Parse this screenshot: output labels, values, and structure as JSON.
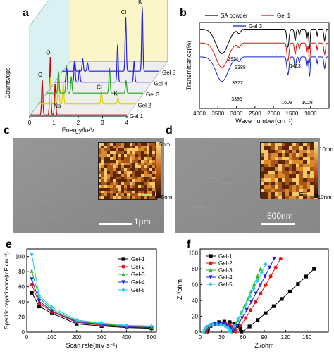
{
  "panel_labels": {
    "a": "a",
    "b": "b",
    "c": "c",
    "d": "d",
    "e": "e",
    "f": "f"
  },
  "chart_data": [
    {
      "id": "a",
      "type": "line",
      "xlabel": "Energy/keV",
      "ylabel": "Counts/cps",
      "x_ticks": [
        "0",
        "1",
        "2",
        "3",
        "4"
      ],
      "xlim": [
        0,
        4
      ],
      "series": [
        {
          "name": "Gel 1",
          "color": "#cc0000",
          "peaks": [
            {
              "x": 0.52,
              "h": 0.34
            },
            {
              "x": 0.85,
              "h": 0.55
            },
            {
              "x": 1.05,
              "h": 0.3
            }
          ]
        },
        {
          "name": "Gel 2",
          "color": "#e0d000",
          "peaks": [
            {
              "x": 0.52,
              "h": 0.26
            },
            {
              "x": 0.85,
              "h": 0.32
            },
            {
              "x": 1.05,
              "h": 0.2
            },
            {
              "x": 2.62,
              "h": 0.12
            },
            {
              "x": 3.3,
              "h": 0.06
            }
          ]
        },
        {
          "name": "Gel 3",
          "color": "#22aa22",
          "peaks": [
            {
              "x": 0.52,
              "h": 0.2
            },
            {
              "x": 0.85,
              "h": 0.26
            },
            {
              "x": 1.05,
              "h": 0.16
            },
            {
              "x": 2.62,
              "h": 0.24
            },
            {
              "x": 3.3,
              "h": 0.12
            }
          ]
        },
        {
          "name": "Gel 4",
          "color": "#2020dd",
          "peaks": [
            {
              "x": 0.52,
              "h": 0.14
            },
            {
              "x": 0.85,
              "h": 0.18
            },
            {
              "x": 1.05,
              "h": 0.12
            },
            {
              "x": 2.62,
              "h": 0.36
            },
            {
              "x": 3.3,
              "h": 0.2
            }
          ]
        },
        {
          "name": "Gel 5",
          "color": "#2020dd",
          "peaks": [
            {
              "x": 0.52,
              "h": 0.1
            },
            {
              "x": 0.85,
              "h": 0.12
            },
            {
              "x": 1.05,
              "h": 0.08
            },
            {
              "x": 2.62,
              "h": 0.52
            },
            {
              "x": 3.3,
              "h": 0.62
            }
          ]
        }
      ],
      "annotations": [
        {
          "text": "C",
          "series": 0,
          "peak": 0
        },
        {
          "text": "O",
          "series": 0,
          "peak": 1
        },
        {
          "text": "Na",
          "series": 0,
          "peak": 2
        },
        {
          "text": "Cl",
          "series": 1,
          "peak": 3
        },
        {
          "text": "K",
          "series": 1,
          "peak": 4
        },
        {
          "text": "Cl",
          "series": 4,
          "peak": 3
        },
        {
          "text": "K",
          "series": 4,
          "peak": 4
        }
      ]
    },
    {
      "id": "b",
      "type": "line",
      "xlabel": "Wave number(cm⁻¹)",
      "ylabel": "Transmittance(%)",
      "xlim": [
        4000,
        500
      ],
      "x_ticks": [
        4000,
        3500,
        3000,
        2500,
        2000,
        1500,
        1000
      ],
      "series": [
        {
          "name": "SA  powder",
          "color": "#000000",
          "offset": 0.0
        },
        {
          "name": "Gel 1",
          "color": "#dd1111",
          "offset": 0.17
        },
        {
          "name": "Gel 3",
          "color": "#1122cc",
          "offset": 0.34
        }
      ],
      "annotations": [
        {
          "text": "3388",
          "x": 3388,
          "series": 0
        },
        {
          "text": "2931",
          "x": 2931,
          "series": 0
        },
        {
          "text": "1413",
          "x": 1413,
          "series": 1
        },
        {
          "text": "3377",
          "x": 3377,
          "series": 1
        },
        {
          "text": "3396",
          "x": 3396,
          "series": 2
        },
        {
          "text": "1608",
          "x": 1608,
          "series": 2
        },
        {
          "text": "1028",
          "x": 1028,
          "series": 2
        }
      ]
    },
    {
      "id": "e",
      "type": "line",
      "xlabel": "Scan rate(mV s⁻¹)",
      "ylabel": "Specific capacitance(mF cm⁻²)",
      "xlim": [
        0,
        520
      ],
      "ylim": [
        0,
        110
      ],
      "x_ticks": [
        0,
        100,
        200,
        300,
        400,
        500
      ],
      "y_ticks": [
        0,
        20,
        40,
        60,
        80,
        100
      ],
      "x": [
        20,
        50,
        100,
        200,
        300,
        400,
        500
      ],
      "legend_position": "top-right",
      "series": [
        {
          "name": "Gel-1",
          "color": "#000000",
          "marker": "square",
          "values": [
            52,
            34,
            25,
            11,
            8,
            6,
            5
          ]
        },
        {
          "name": "Gel-2",
          "color": "#ee1111",
          "marker": "circle",
          "values": [
            63,
            38,
            27,
            13,
            9,
            7,
            6
          ]
        },
        {
          "name": "Gel-3",
          "color": "#22bb22",
          "marker": "triangle-up",
          "values": [
            81,
            45,
            30,
            15,
            11,
            8,
            7
          ]
        },
        {
          "name": "Gel-4",
          "color": "#2222dd",
          "marker": "triangle-down",
          "values": [
            70,
            41,
            28,
            14,
            10,
            7,
            6
          ]
        },
        {
          "name": "Gel-5",
          "color": "#22ccee",
          "marker": "diamond",
          "values": [
            103,
            48,
            33,
            16,
            12,
            9,
            8
          ]
        }
      ]
    },
    {
      "id": "f",
      "type": "scatter",
      "xlabel": "Z'/ohm",
      "ylabel": "-Z''/ohm",
      "xlim": [
        0,
        180
      ],
      "ylim": [
        0,
        105
      ],
      "x_ticks": [
        0,
        30,
        60,
        90,
        120,
        150
      ],
      "y_ticks": [
        0,
        20,
        40,
        60,
        80,
        100
      ],
      "legend_position": "top-left",
      "series": [
        {
          "name": "Gel-1",
          "color": "#000000",
          "marker": "square",
          "arc_start": 10,
          "arc_end": 58,
          "tail_end": [
            160,
            80
          ]
        },
        {
          "name": "Gel-2",
          "color": "#ee1111",
          "marker": "circle",
          "arc_start": 8,
          "arc_end": 50,
          "tail_end": [
            113,
            93
          ]
        },
        {
          "name": "Gel-3",
          "color": "#22bb22",
          "marker": "triangle-up",
          "arc_start": 6,
          "arc_end": 44,
          "tail_end": [
            85,
            80
          ]
        },
        {
          "name": "Gel-4",
          "color": "#2222dd",
          "marker": "triangle-down",
          "arc_start": 7,
          "arc_end": 46,
          "tail_end": [
            104,
            93
          ]
        },
        {
          "name": "Gel-5",
          "color": "#22ccee",
          "marker": "diamond",
          "arc_start": 5,
          "arc_end": 42,
          "tail_end": [
            92,
            86
          ]
        }
      ]
    }
  ],
  "panel_c": {
    "scale_label": "1μm",
    "cbar_top": "5nm",
    "cbar_bottom": "-5nm"
  },
  "panel_d": {
    "scale_label": "500nm",
    "cbar_top": "10nm",
    "cbar_bottom": "-10nm"
  }
}
